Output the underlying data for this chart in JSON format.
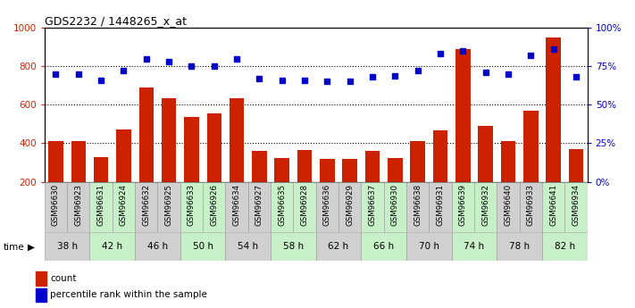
{
  "title": "GDS2232 / 1448265_x_at",
  "samples": [
    "GSM96630",
    "GSM96923",
    "GSM96631",
    "GSM96924",
    "GSM96632",
    "GSM96925",
    "GSM96633",
    "GSM96926",
    "GSM96634",
    "GSM96927",
    "GSM96635",
    "GSM96928",
    "GSM96636",
    "GSM96929",
    "GSM96637",
    "GSM96930",
    "GSM96638",
    "GSM96931",
    "GSM96639",
    "GSM96932",
    "GSM96640",
    "GSM96933",
    "GSM96641",
    "GSM96934"
  ],
  "counts": [
    410,
    410,
    330,
    470,
    690,
    635,
    535,
    555,
    635,
    360,
    325,
    365,
    320,
    320,
    360,
    325,
    410,
    465,
    890,
    490,
    410,
    570,
    950,
    370
  ],
  "percentiles": [
    70,
    70,
    66,
    72,
    80,
    78,
    75,
    75,
    80,
    67,
    66,
    66,
    65,
    65,
    68,
    69,
    72,
    83,
    85,
    71,
    70,
    82,
    86,
    68
  ],
  "time_labels": [
    "38 h",
    "42 h",
    "46 h",
    "50 h",
    "54 h",
    "58 h",
    "62 h",
    "66 h",
    "70 h",
    "74 h",
    "78 h",
    "82 h"
  ],
  "group_colors": [
    "#d0d0d0",
    "#c8f0c8",
    "#d0d0d0",
    "#c8f0c8",
    "#d0d0d0",
    "#c8f0c8",
    "#d0d0d0",
    "#c8f0c8",
    "#d0d0d0",
    "#c8f0c8",
    "#d0d0d0",
    "#c8f0c8"
  ],
  "bar_color": "#cc2200",
  "dot_color": "#0000cc",
  "ylim_left": [
    200,
    1000
  ],
  "ylim_right": [
    0,
    100
  ],
  "yticks_left": [
    200,
    400,
    600,
    800,
    1000
  ],
  "yticks_right": [
    0,
    25,
    50,
    75,
    100
  ],
  "grid_values": [
    400,
    600,
    800
  ],
  "left_label_color": "#cc2200",
  "right_label_color": "#0000cc",
  "legend_count": "count",
  "legend_pct": "percentile rank within the sample",
  "time_label": "time"
}
